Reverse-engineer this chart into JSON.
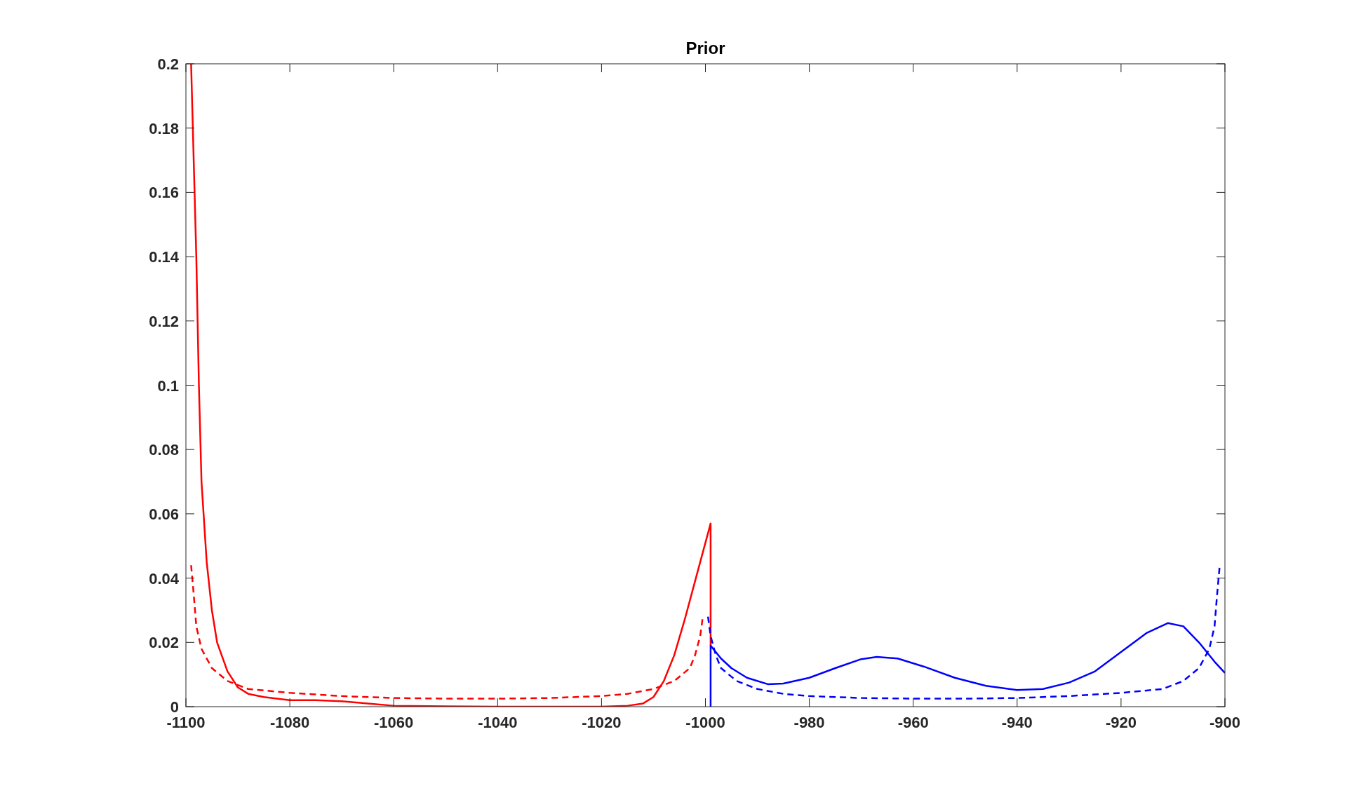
{
  "chart_data": {
    "type": "line",
    "title": "Prior",
    "xlim": [
      -1100,
      -900
    ],
    "xticks": [
      -1100,
      -1080,
      -1060,
      -1040,
      -1020,
      -1000,
      -980,
      -960,
      -940,
      -920,
      -900
    ],
    "ylim": [
      0,
      0.2
    ],
    "yticks": [
      0,
      0.02,
      0.04,
      0.06,
      0.08,
      0.1,
      0.12,
      0.14,
      0.16,
      0.18,
      0.2
    ],
    "grid": false,
    "marker": "none",
    "series": [
      {
        "color": "#ff0000",
        "line_style": "solid",
        "x": [
          -1099,
          -1098,
          -1097.5,
          -1097,
          -1096,
          -1095,
          -1094,
          -1092,
          -1090,
          -1088,
          -1085,
          -1080,
          -1075,
          -1070,
          -1065,
          -1060,
          -1050,
          -1040,
          -1020,
          -1015,
          -1012,
          -1010,
          -1008,
          -1006,
          -1004,
          -1002,
          -1000,
          -999,
          -999
        ],
        "values": [
          0.2,
          0.14,
          0.1,
          0.07,
          0.045,
          0.03,
          0.02,
          0.011,
          0.006,
          0.004,
          0.003,
          0.002,
          0.002,
          0.0017,
          0.001,
          0.0003,
          0.0001,
          0,
          0,
          0.0003,
          0.001,
          0.003,
          0.008,
          0.016,
          0.027,
          0.039,
          0.051,
          0.057,
          0.019
        ]
      },
      {
        "color": "#ff0000",
        "line_style": "dashed",
        "x": [
          -1099,
          -1098.5,
          -1098,
          -1097,
          -1095,
          -1092,
          -1088,
          -1080,
          -1070,
          -1060,
          -1050,
          -1040,
          -1030,
          -1020,
          -1015,
          -1010,
          -1006,
          -1003,
          -1002,
          -1001,
          -1000.5
        ],
        "values": [
          0.044,
          0.035,
          0.025,
          0.018,
          0.012,
          0.008,
          0.0055,
          0.0043,
          0.0033,
          0.0027,
          0.0025,
          0.0025,
          0.0027,
          0.0033,
          0.004,
          0.0055,
          0.008,
          0.012,
          0.016,
          0.022,
          0.028
        ]
      },
      {
        "color": "#0000ff",
        "line_style": "solid",
        "x": [
          -999,
          -999,
          -997,
          -995,
          -992,
          -988,
          -985,
          -980,
          -975,
          -970,
          -967,
          -963,
          -958,
          -952,
          -946,
          -940,
          -935,
          -930,
          -925,
          -920,
          -915,
          -911,
          -908,
          -905,
          -902,
          -900
        ],
        "values": [
          0,
          0.019,
          0.015,
          0.012,
          0.009,
          0.007,
          0.0072,
          0.009,
          0.012,
          0.0148,
          0.0155,
          0.015,
          0.0125,
          0.009,
          0.0065,
          0.0052,
          0.0055,
          0.0075,
          0.011,
          0.017,
          0.023,
          0.026,
          0.025,
          0.02,
          0.014,
          0.0105
        ]
      },
      {
        "color": "#0000ff",
        "line_style": "dashed",
        "x": [
          -999.5,
          -999,
          -998,
          -997,
          -994,
          -990,
          -985,
          -980,
          -970,
          -960,
          -950,
          -940,
          -930,
          -920,
          -912,
          -908,
          -905,
          -903,
          -902,
          -901.5,
          -901
        ],
        "values": [
          0.028,
          0.022,
          0.016,
          0.012,
          0.008,
          0.0055,
          0.004,
          0.0033,
          0.0027,
          0.0025,
          0.0025,
          0.0027,
          0.0033,
          0.0043,
          0.0055,
          0.008,
          0.012,
          0.018,
          0.025,
          0.035,
          0.044
        ]
      }
    ]
  }
}
